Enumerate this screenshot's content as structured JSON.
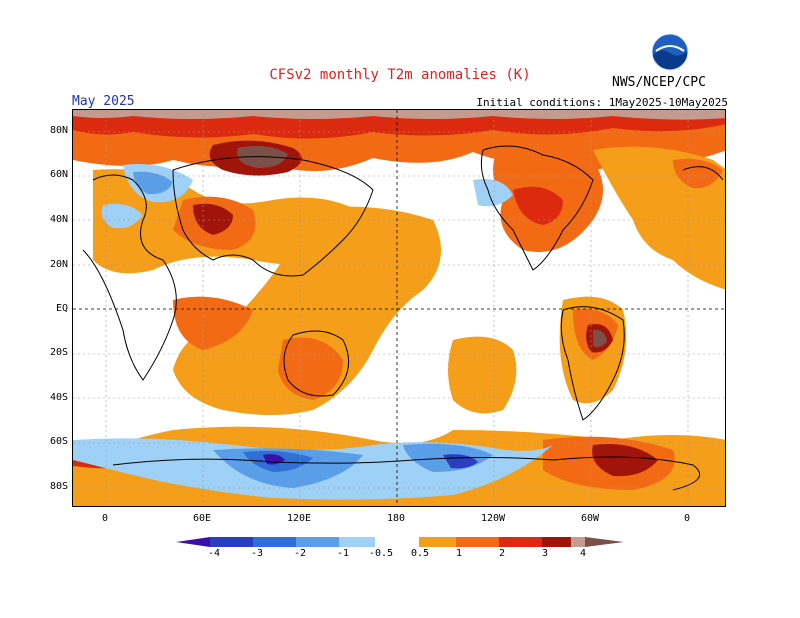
{
  "header": {
    "title": "CFSv2 monthly T2m anomalies (K)",
    "period": "May 2025",
    "initial_conditions": "Initial conditions: 1May2025-10May2025",
    "agency": "NWS/NCEP/CPC",
    "logo_text": "NOAA"
  },
  "map": {
    "lat_labels": [
      "80N",
      "60N",
      "40N",
      "20N",
      "EQ",
      "20S",
      "40S",
      "60S",
      "80S"
    ],
    "lon_labels": [
      "0",
      "60E",
      "120E",
      "180",
      "120W",
      "60W",
      "0"
    ]
  },
  "colorbar": {
    "labels": [
      "-4",
      "-3",
      "-2",
      "-1",
      "-0.5",
      "0.5",
      "1",
      "2",
      "3",
      "4"
    ],
    "colors": {
      "lt-4": "#3a10a8",
      "-4to-3": "#2a3fc0",
      "-3to-2": "#2f6fd8",
      "-2to-1": "#5b9ee8",
      "-1to-0.5": "#9fd0f5",
      "neutral": "#ffffff",
      "0.5to1": "#f59e1a",
      "1to2": "#f26a14",
      "2to3": "#dc2a0e",
      "3to4": "#a0140a",
      "4plus": "#c49b8f",
      "max": "#7a5048"
    }
  }
}
